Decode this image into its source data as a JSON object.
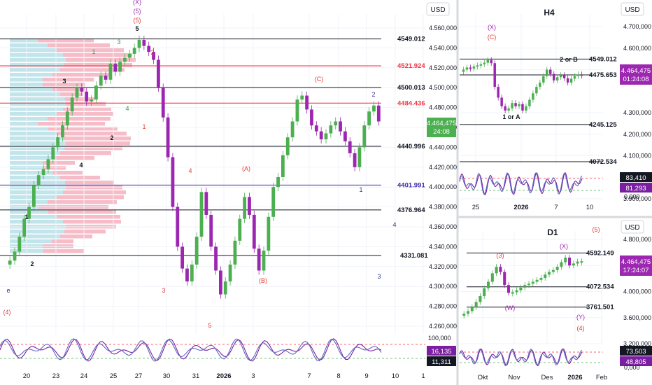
{
  "panels": {
    "main": {
      "currency": "USD",
      "price_badge": "4.464,475",
      "timer_badge": "24:08",
      "osc_badges": [
        "16,135",
        "11,311"
      ],
      "osc_axis_label": "100,000"
    },
    "h4": {
      "title": "H4",
      "currency": "USD",
      "price_badge": "4.464,475",
      "timer_badge": "01:24:08",
      "osc_badges": [
        "83,410",
        "81,293"
      ],
      "osc_axis_label": "0,000"
    },
    "d1": {
      "title": "D1",
      "currency": "USD",
      "price_badge": "4.464,475",
      "timer_badge": "17:24:07",
      "osc_badges": [
        "73,503",
        "48,805"
      ],
      "osc_axis_label": "0,000"
    }
  },
  "colors": {
    "up": "#4caf50",
    "down": "#9c27b0",
    "red_level": "#f23645",
    "wave_red": "#e53935",
    "wave_green": "#2e9e3e",
    "wave_purple": "#9c27b0",
    "wave_navy": "#283593",
    "osc_a": "#7b1fa2",
    "osc_b": "#5c6bc0",
    "badge_green": "#4caf50",
    "badge_purple": "#9c27b0"
  },
  "chart_data": [
    {
      "id": "main",
      "type": "line",
      "timeframe_label": "",
      "x_ticks": [
        "20",
        "23",
        "24",
        "25",
        "27",
        "30",
        "31",
        "2026",
        "3",
        "7",
        "8",
        "9",
        "10",
        "1"
      ],
      "y_ticks": [
        "4.560,000",
        "4.540,000",
        "4.520,000",
        "4.500,000",
        "4.480,000",
        "4.460,000",
        "4.440,000",
        "4.420,000",
        "4.400,000",
        "4.380,000",
        "4.360,000",
        "4.340,000",
        "4.320,000",
        "4.300,000",
        "4.280,000",
        "4.260,000"
      ],
      "ylim": [
        4255,
        4572
      ],
      "levels": [
        {
          "label": "4549.012",
          "value": 4549.012,
          "color": "black"
        },
        {
          "label": "4521.924",
          "value": 4521.924,
          "color": "red"
        },
        {
          "label": "4500.013",
          "value": 4500.013,
          "color": "black"
        },
        {
          "label": "4484.436",
          "value": 4484.436,
          "color": "red"
        },
        {
          "label": "4440.996",
          "value": 4440.996,
          "color": "black"
        },
        {
          "label": "4401.991",
          "value": 4401.991,
          "color": "purple"
        },
        {
          "label": "4376.964",
          "value": 4376.964,
          "color": "black"
        },
        {
          "label": "4331.081",
          "value": 4331.081,
          "color": "black"
        }
      ],
      "series": [
        {
          "values": [
            4322,
            4326,
            4335,
            4350,
            4368,
            4380,
            4402,
            4412,
            4418,
            4428,
            4440,
            4450,
            4462,
            4476,
            4490,
            4500,
            4496,
            4486,
            4488,
            4502,
            4512,
            4508,
            4524,
            4516,
            4526,
            4530,
            4534,
            4540,
            4548,
            4542,
            4536,
            4528,
            4500,
            4470,
            4430,
            4380,
            4340,
            4318,
            4305,
            4322,
            4350,
            4395,
            4372,
            4340,
            4316,
            4292,
            4305,
            4322,
            4346,
            4368,
            4390,
            4372,
            4338,
            4316,
            4336,
            4370,
            4400,
            4410,
            4432,
            4450,
            4466,
            4488,
            4492,
            4478,
            4462,
            4456,
            4448,
            4454,
            4462,
            4466,
            4456,
            4446,
            4434,
            4420,
            4440,
            4462,
            4476,
            4482,
            4466
          ]
        }
      ],
      "wave_labels": [
        {
          "text": "(X)",
          "color": "purple"
        },
        {
          "text": "(5)",
          "color": "purple"
        },
        {
          "text": "(5)",
          "color": "red"
        },
        {
          "text": "5",
          "color": "black"
        },
        {
          "text": "2",
          "color": "red"
        },
        {
          "text": "1",
          "color": "green"
        },
        {
          "text": "3",
          "color": "green"
        },
        {
          "text": "3",
          "color": "black"
        },
        {
          "text": "4",
          "color": "green"
        },
        {
          "text": "2",
          "color": "black"
        },
        {
          "text": "1",
          "color": "red"
        },
        {
          "text": "4",
          "color": "black"
        },
        {
          "text": "1",
          "color": "black"
        },
        {
          "text": "2",
          "color": "black"
        },
        {
          "text": "e",
          "color": "navy"
        },
        {
          "text": "(4)",
          "color": "red"
        },
        {
          "text": "4",
          "color": "red"
        },
        {
          "text": "3",
          "color": "red"
        },
        {
          "text": "5",
          "color": "red"
        },
        {
          "text": "(A)",
          "color": "red"
        },
        {
          "text": "(B)",
          "color": "red"
        },
        {
          "text": "(C)",
          "color": "red"
        },
        {
          "text": "2",
          "color": "navy"
        },
        {
          "text": "1",
          "color": "navy"
        },
        {
          "text": "4",
          "color": "navy"
        },
        {
          "text": "3",
          "color": "navy"
        }
      ]
    },
    {
      "id": "h4",
      "type": "line",
      "timeframe_label": "H4",
      "x_ticks": [
        "25",
        "2026",
        "7",
        "10"
      ],
      "y_ticks": [
        "4.700,000",
        "4.600,000",
        "4.500,000",
        "4.300,000",
        "4.200,000",
        "4.100,000",
        "4.000,000",
        "3.900,000"
      ],
      "ylim": [
        3880,
        4740
      ],
      "levels": [
        {
          "label": "4549.012",
          "value": 4549.012,
          "color": "black"
        },
        {
          "label": "4475.653",
          "value": 4475.653,
          "color": "black"
        },
        {
          "label": "4245.125",
          "value": 4245.125,
          "color": "black"
        },
        {
          "label": "4072.534",
          "value": 4072.534,
          "color": "black"
        }
      ],
      "series": [
        {
          "values": [
            4490,
            4500,
            4510,
            4505,
            4515,
            4520,
            4525,
            4532,
            4545,
            4530,
            4420,
            4370,
            4330,
            4310,
            4320,
            4345,
            4330,
            4340,
            4310,
            4330,
            4360,
            4390,
            4420,
            4440,
            4470,
            4500,
            4480,
            4450,
            4465,
            4475,
            4460,
            4440,
            4458,
            4470,
            4478,
            4475
          ]
        }
      ],
      "wave_labels": [
        {
          "text": "(X)",
          "color": "purple"
        },
        {
          "text": "(C)",
          "color": "red"
        },
        {
          "text": "2 or B",
          "color": "black"
        },
        {
          "text": "1 or A",
          "color": "black"
        }
      ]
    },
    {
      "id": "d1",
      "type": "line",
      "timeframe_label": "D1",
      "x_ticks": [
        "Okt",
        "Nov",
        "Des",
        "2026",
        "Feb"
      ],
      "y_ticks": [
        "4.800,000",
        "4.400,000",
        "4.000,000",
        "3.600,000",
        "3.200,000"
      ],
      "ylim": [
        3140,
        4900
      ],
      "levels": [
        {
          "label": "4592.149",
          "value": 4592.149,
          "color": "black"
        },
        {
          "label": "4072.534",
          "value": 4072.534,
          "color": "black"
        },
        {
          "label": "3761.501",
          "value": 3761.501,
          "color": "black"
        }
      ],
      "series": [
        {
          "values": [
            3630,
            3660,
            3700,
            3760,
            3840,
            3930,
            4050,
            4150,
            4280,
            4380,
            4300,
            4100,
            3980,
            3990,
            4020,
            4060,
            4100,
            4120,
            4150,
            4180,
            4210,
            4260,
            4300,
            4330,
            4380,
            4450,
            4520,
            4400,
            4430,
            4460,
            4465
          ]
        }
      ],
      "wave_labels": [
        {
          "text": "(5)",
          "color": "red"
        },
        {
          "text": "(3)",
          "color": "red"
        },
        {
          "text": "(X)",
          "color": "purple"
        },
        {
          "text": "(W)",
          "color": "purple"
        },
        {
          "text": "(Y)",
          "color": "purple"
        },
        {
          "text": "(4)",
          "color": "red"
        }
      ]
    }
  ]
}
